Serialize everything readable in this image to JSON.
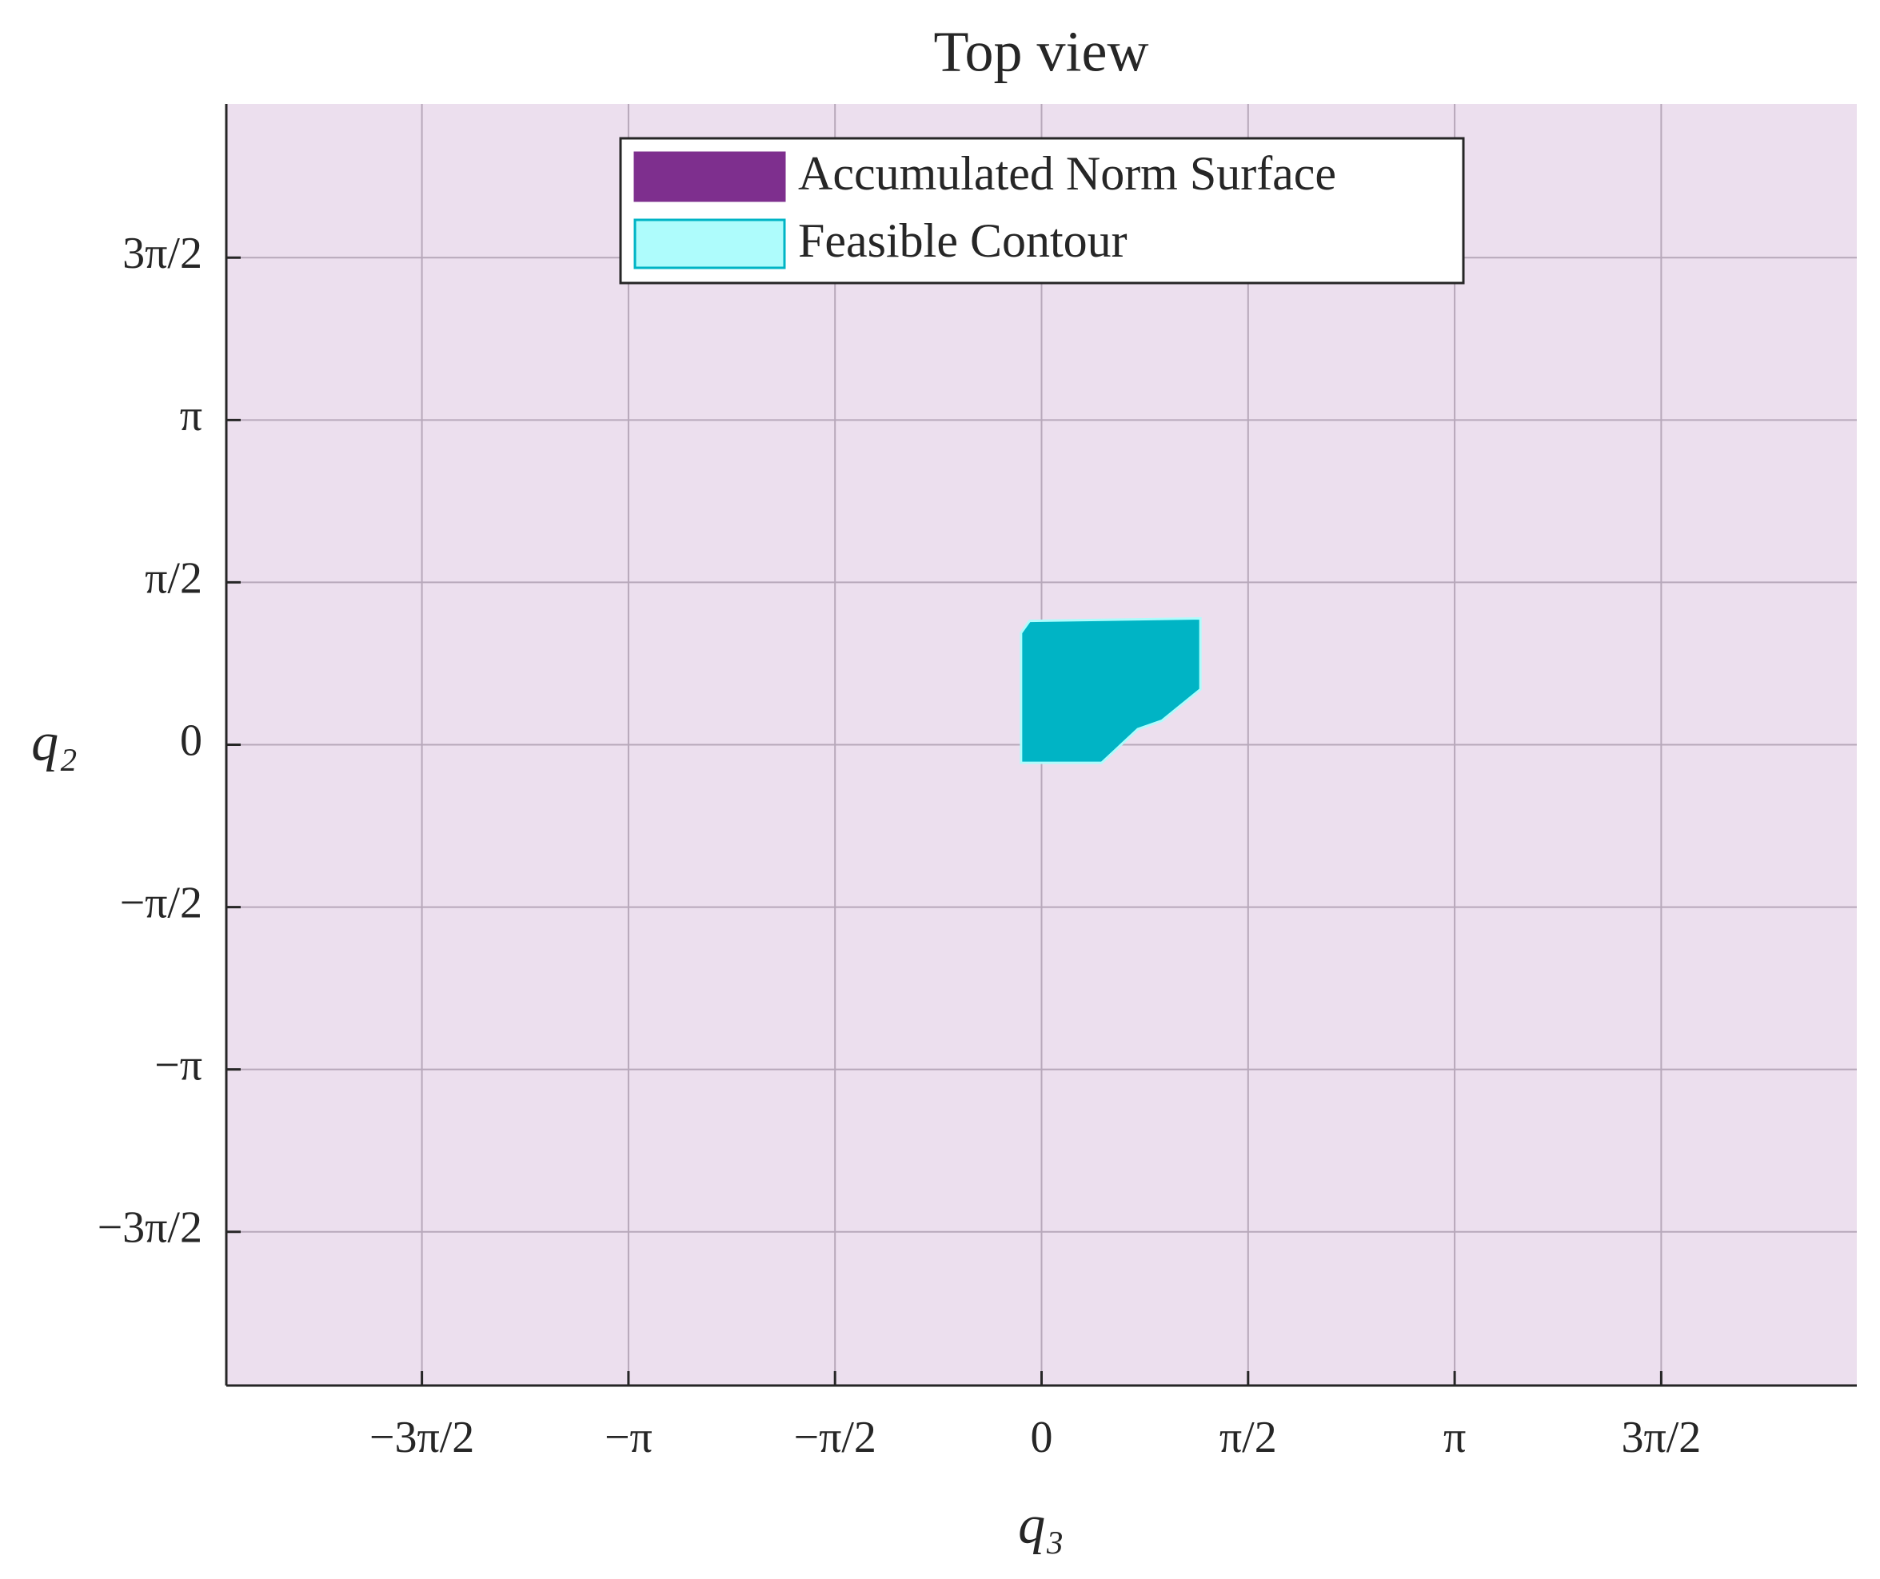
{
  "chart_data": {
    "type": "region",
    "title": "Top view",
    "xlabel": "q₃",
    "ylabel": "q₂",
    "xlim": [
      -6.2,
      6.2
    ],
    "ylim": [
      -6.2,
      6.2
    ],
    "xticks": [
      {
        "value": -4.7124,
        "label": "−3π/2"
      },
      {
        "value": -3.1416,
        "label": "−π"
      },
      {
        "value": -1.5708,
        "label": "−π/2"
      },
      0,
      {
        "value": 1.5708,
        "label": "π/2"
      },
      {
        "value": 3.1416,
        "label": "π"
      },
      {
        "value": 4.7124,
        "label": "3π/2"
      }
    ],
    "yticks": [
      {
        "value": -4.7124,
        "label": "−3π/2"
      },
      {
        "value": -3.1416,
        "label": "−π"
      },
      {
        "value": -1.5708,
        "label": "−π/2"
      },
      0,
      {
        "value": 1.5708,
        "label": "π/2"
      },
      {
        "value": 3.1416,
        "label": "π"
      },
      {
        "value": 4.7124,
        "label": "3π/2"
      }
    ],
    "grid": true,
    "legend": "top",
    "series": [
      {
        "name": "Accumulated Norm Surface",
        "color": "#7e2f8e",
        "face_color": "#ecdfee"
      },
      {
        "name": "Feasible Contour",
        "color": "#00b4c5",
        "legend_color": "#aefcfc",
        "x": [
          -0.156,
          -0.091,
          1.208,
          1.208,
          0.915,
          0.732,
          0.457,
          -0.156
        ],
        "y": [
          1.082,
          1.198,
          1.222,
          0.535,
          0.233,
          0.151,
          -0.175,
          -0.175
        ]
      }
    ]
  }
}
